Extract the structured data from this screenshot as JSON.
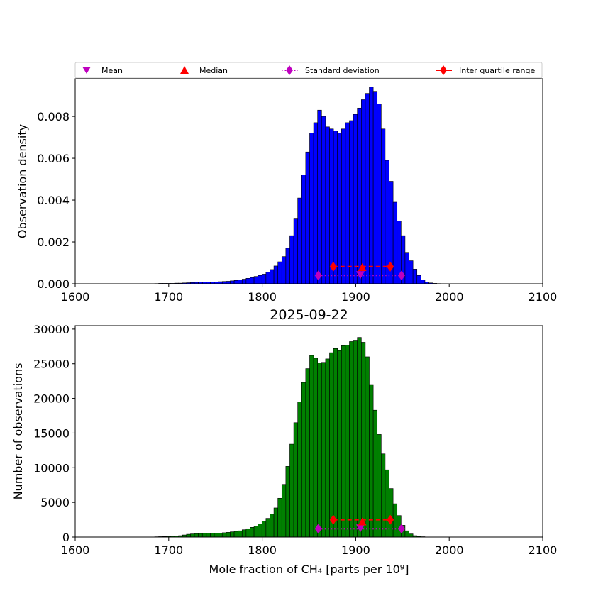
{
  "legend": {
    "mean": "Mean",
    "median": "Median",
    "std": "Standard deviation",
    "iqr": "Inter quartile range"
  },
  "chart_data": [
    {
      "type": "bar",
      "title": "",
      "xlabel": "",
      "ylabel": "Observation density",
      "xlim": [
        1600,
        2100
      ],
      "ylim": [
        0,
        0.0098
      ],
      "xticks": [
        "1600",
        "1700",
        "1800",
        "1900",
        "2000",
        "2100"
      ],
      "yticks": [
        "0.000",
        "0.002",
        "0.004",
        "0.006",
        "0.008"
      ],
      "ytick_values": [
        0,
        0.002,
        0.004,
        0.006,
        0.008
      ],
      "bar_color": "#0000ff",
      "bin_start": 1685,
      "bin_width": 4.25,
      "values": [
        1e-05,
        2e-05,
        2e-05,
        2e-05,
        2e-05,
        3e-05,
        3e-05,
        4e-05,
        5e-05,
        6e-05,
        7e-05,
        8e-05,
        8e-05,
        8e-05,
        9e-05,
        9e-05,
        0.0001,
        0.00011,
        0.00012,
        0.00014,
        0.00016,
        0.00019,
        0.00022,
        0.00026,
        0.0003,
        0.00035,
        0.0004,
        0.00046,
        0.00055,
        0.00068,
        0.00085,
        0.00105,
        0.0013,
        0.0017,
        0.0023,
        0.0031,
        0.0041,
        0.0052,
        0.0063,
        0.0072,
        0.0077,
        0.0083,
        0.008,
        0.0075,
        0.0074,
        0.0073,
        0.0072,
        0.0074,
        0.0077,
        0.0078,
        0.0081,
        0.0084,
        0.0088,
        0.0091,
        0.0094,
        0.0092,
        0.0086,
        0.0074,
        0.0059,
        0.0049,
        0.0039,
        0.003,
        0.0023,
        0.0015,
        0.0011,
        0.0007,
        0.0004,
        0.00018,
        8e-05,
        4e-05,
        2e-05,
        1e-05
      ],
      "markers": {
        "mean": {
          "x": 1905,
          "y": 0.0004
        },
        "median": {
          "x": 1907,
          "y": 0.00078
        },
        "std": [
          1860,
          1949
        ],
        "std_y": 0.0004,
        "iqr": [
          1876,
          1937
        ],
        "iqr_y": 0.00082
      }
    },
    {
      "type": "bar",
      "title": "2025-09-22",
      "xlabel": "Mole fraction of CH₄ [parts per 10⁹]",
      "ylabel": "Number of observations",
      "xlim": [
        1600,
        2100
      ],
      "ylim": [
        0,
        30500
      ],
      "xticks": [
        "1600",
        "1700",
        "1800",
        "1900",
        "2000",
        "2100"
      ],
      "yticks": [
        "0",
        "5000",
        "10000",
        "15000",
        "20000",
        "25000",
        "30000"
      ],
      "ytick_values": [
        0,
        5000,
        10000,
        15000,
        20000,
        25000,
        30000
      ],
      "bar_color": "#008000",
      "bin_start": 1685,
      "bin_width": 4.25,
      "values": [
        40,
        60,
        80,
        100,
        120,
        140,
        200,
        300,
        400,
        450,
        500,
        520,
        540,
        550,
        550,
        560,
        580,
        620,
        680,
        750,
        820,
        900,
        1050,
        1200,
        1400,
        1600,
        1900,
        2300,
        2700,
        3300,
        4200,
        5600,
        7600,
        10200,
        13400,
        16500,
        19500,
        22300,
        24300,
        26200,
        25800,
        25100,
        25200,
        25700,
        26600,
        27200,
        26900,
        27600,
        27700,
        28200,
        28400,
        28800,
        28100,
        26000,
        22000,
        18300,
        14800,
        12000,
        9700,
        7000,
        4800,
        3100,
        1700,
        900,
        450,
        200,
        100,
        50,
        20,
        10,
        5,
        2
      ],
      "markers": {
        "mean": {
          "x": 1905,
          "y": 1200
        },
        "median": {
          "x": 1907,
          "y": 2200
        },
        "std": [
          1860,
          1949
        ],
        "std_y": 1200,
        "iqr": [
          1876,
          1937
        ],
        "iqr_y": 2500
      }
    }
  ]
}
